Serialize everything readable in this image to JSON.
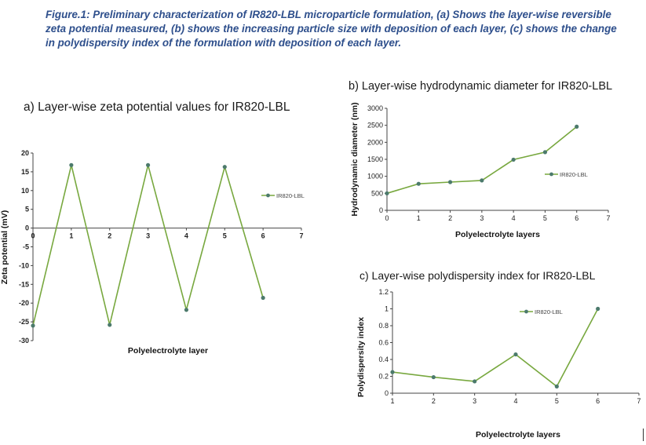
{
  "caption": "Figure.1: Preliminary characterization of IR820-LBL microparticle formulation, (a) Shows the layer-wise reversible zeta potential measured, (b) shows the increasing particle size with deposition of each layer, (c) shows the change in polydispersity index of the formulation with deposition of each layer.",
  "colors": {
    "line": "#78a83f",
    "marker": "#4c7a6c",
    "caption": "#2e4f8c"
  },
  "chart_data": [
    {
      "id": "a",
      "type": "line",
      "title": "a)  Layer-wise zeta potential values for IR820-LBL",
      "xlabel": "Polyelectrolyte layer",
      "ylabel": "Zeta potential (mV)",
      "xlim": [
        0,
        7
      ],
      "ylim": [
        -30,
        20
      ],
      "xticks": [
        0,
        1,
        2,
        3,
        4,
        5,
        6,
        7
      ],
      "yticks": [
        -30,
        -25,
        -20,
        -15,
        -10,
        -5,
        0,
        5,
        10,
        15,
        20
      ],
      "legend": "right",
      "series": [
        {
          "name": "IR820-LBL",
          "x": [
            0,
            1,
            2,
            3,
            4,
            5,
            6
          ],
          "y": [
            -26,
            16.8,
            -25.8,
            16.8,
            -21.8,
            16.3,
            -18.6
          ]
        }
      ]
    },
    {
      "id": "b",
      "type": "line",
      "title": "b)  Layer-wise hydrodynamic diameter for IR820-LBL",
      "xlabel": "Polyelectrolyte layers",
      "ylabel": "Hydrodynamic diameter (nm)",
      "xlim": [
        0,
        7
      ],
      "ylim": [
        0,
        3000
      ],
      "xticks": [
        0,
        1,
        2,
        3,
        4,
        5,
        6,
        7
      ],
      "yticks": [
        0,
        500,
        1000,
        1500,
        2000,
        2500,
        3000
      ],
      "legend": "right",
      "series": [
        {
          "name": "IR820-LBL",
          "x": [
            0,
            1,
            2,
            3,
            4,
            5,
            6
          ],
          "y": [
            500,
            780,
            830,
            880,
            1490,
            1710,
            2460
          ]
        }
      ]
    },
    {
      "id": "c",
      "type": "line",
      "title": "c)  Layer-wise polydispersity index for IR820-LBL",
      "xlabel": "Polyelectrolyte layers",
      "ylabel": "Polydispersity index",
      "xlim": [
        1,
        7
      ],
      "ylim": [
        0,
        1.2
      ],
      "xticks": [
        1,
        2,
        3,
        4,
        5,
        6,
        7
      ],
      "yticks": [
        0,
        0.2,
        0.4,
        0.6,
        0.8,
        1,
        1.2
      ],
      "legend": "top-right",
      "series": [
        {
          "name": "IR820-LBL",
          "x": [
            1,
            2,
            3,
            4,
            5,
            6
          ],
          "y": [
            0.25,
            0.19,
            0.14,
            0.46,
            0.08,
            1.0
          ]
        }
      ]
    }
  ]
}
